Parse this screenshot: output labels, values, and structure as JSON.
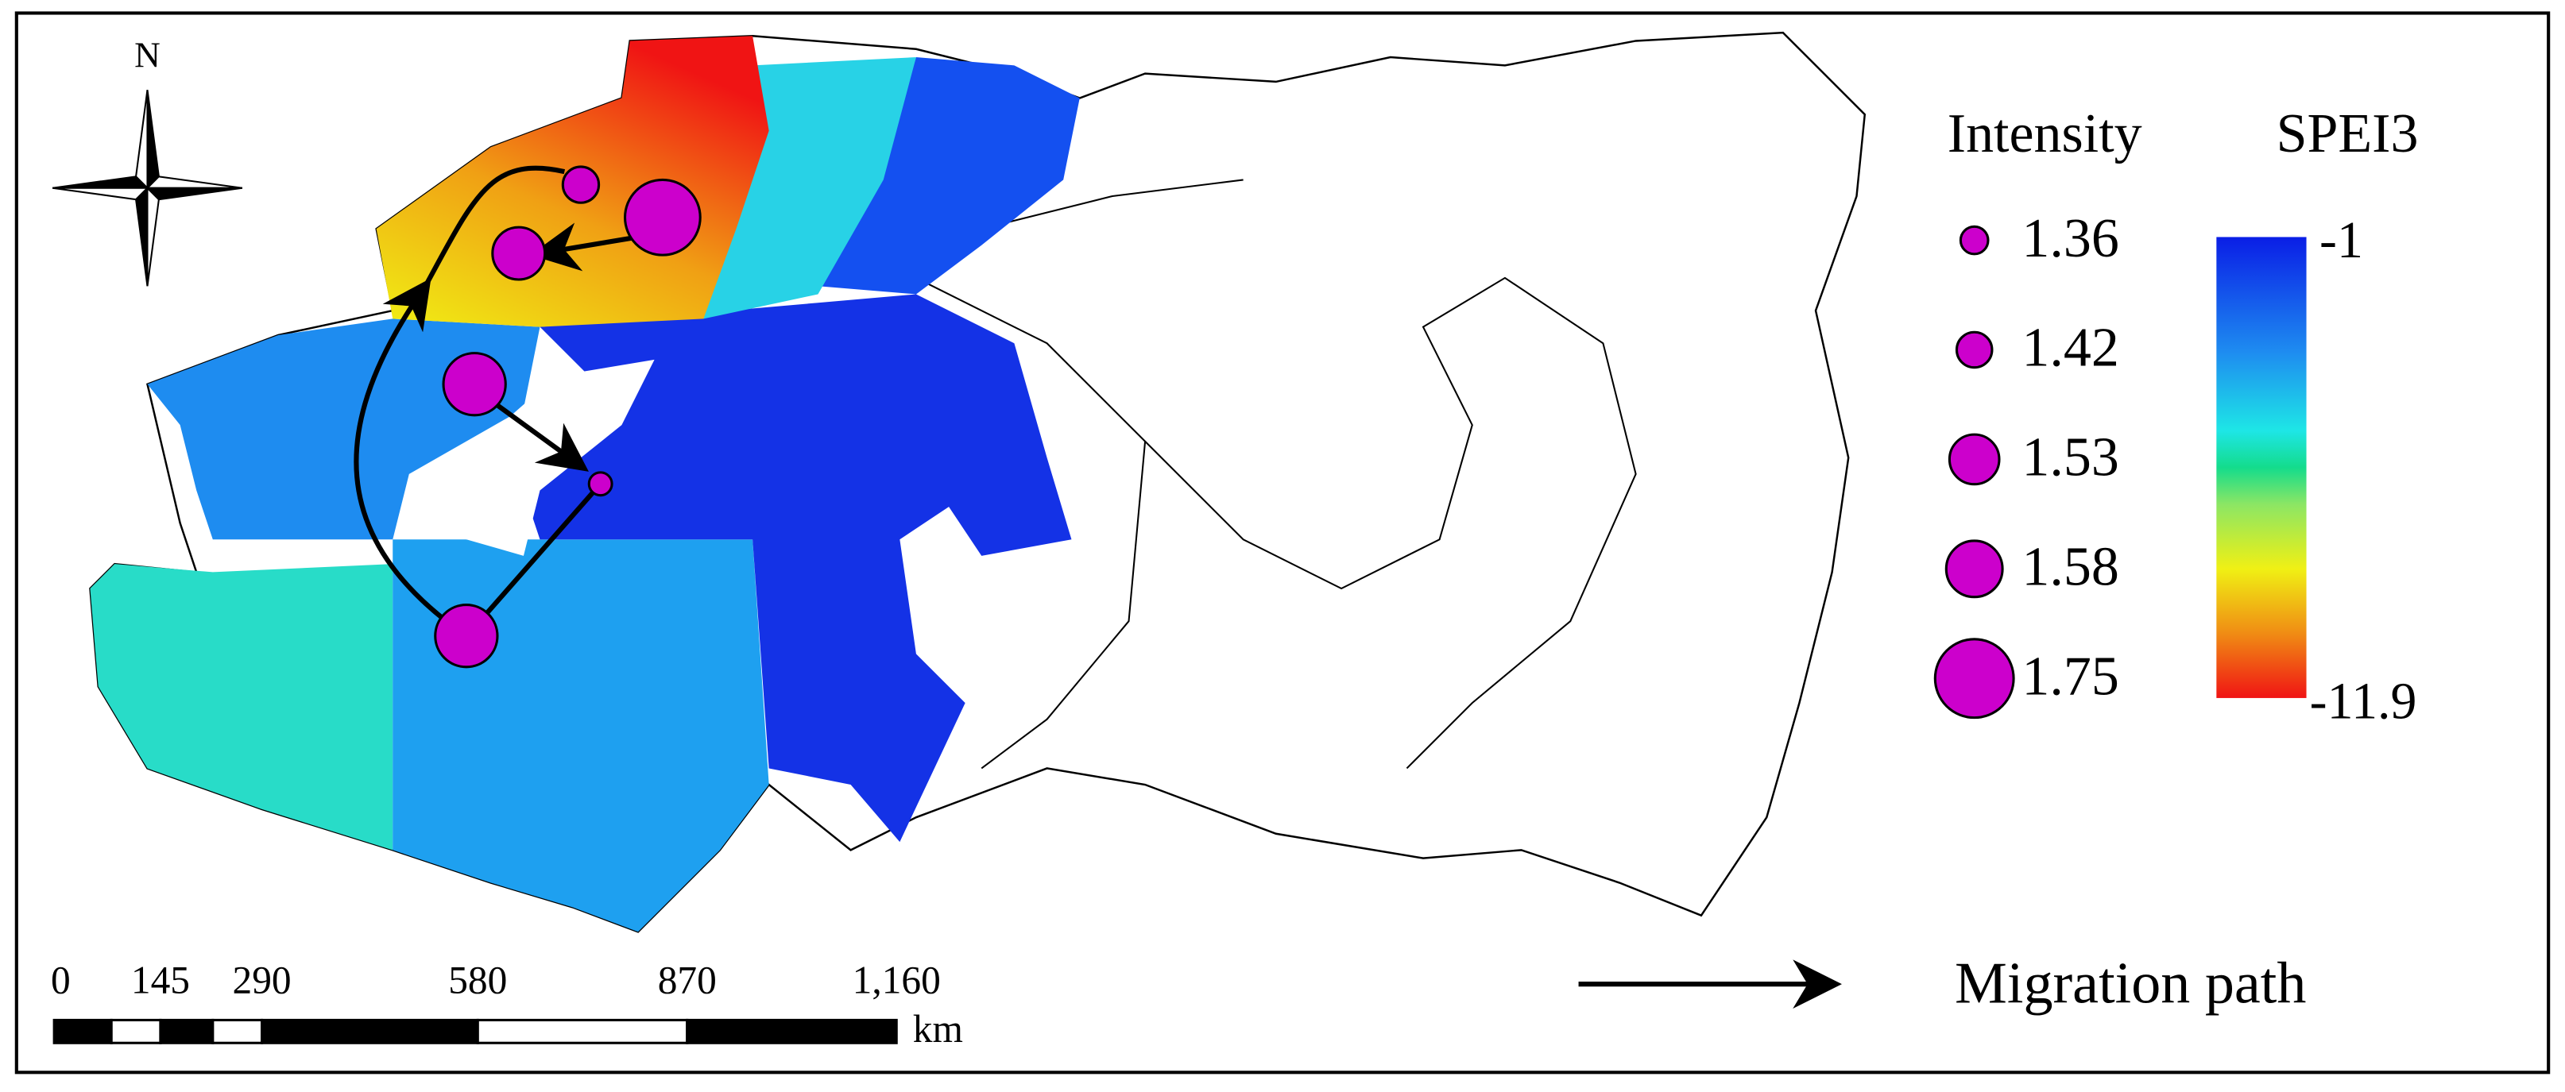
{
  "north": "N",
  "intensity_legend": {
    "title": "Intensity",
    "items": [
      1.36,
      1.42,
      1.53,
      1.58,
      1.75
    ]
  },
  "color_legend": {
    "title": "SPEI3",
    "top_label": "-1",
    "bottom_label": "-11.9"
  },
  "scale_bar": {
    "labels": [
      "0",
      "145",
      "290",
      "580",
      "870",
      "1,160"
    ],
    "unit": "km"
  },
  "path_legend": "Migration path"
}
